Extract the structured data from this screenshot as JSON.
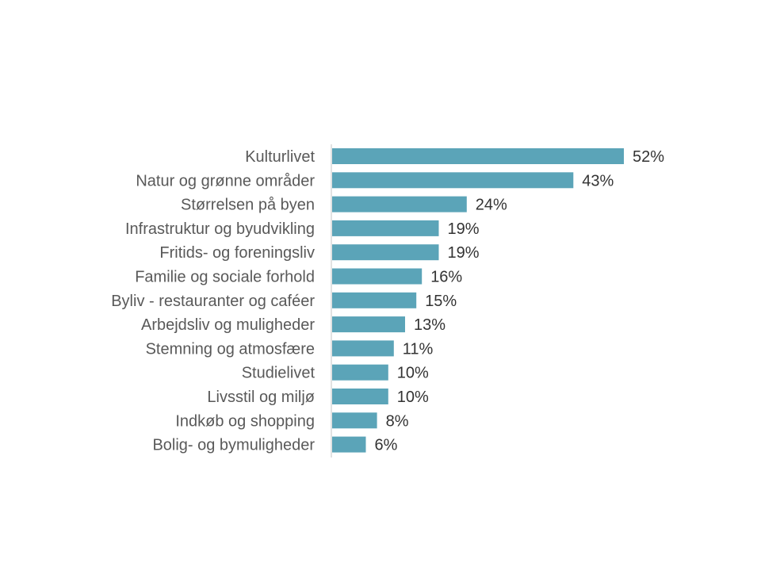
{
  "chart_data": {
    "type": "bar",
    "orientation": "horizontal",
    "categories": [
      "Kulturlivet",
      "Natur og grønne områder",
      "Størrelsen på byen",
      "Infrastruktur og byudvikling",
      "Fritids- og foreningsliv",
      "Familie og sociale forhold",
      "Byliv - restauranter og caféer",
      "Arbejdsliv og muligheder",
      "Stemning og atmosfære",
      "Studielivet",
      "Livsstil og miljø",
      "Indkøb og shopping",
      "Bolig- og bymuligheder"
    ],
    "values": [
      52,
      43,
      24,
      19,
      19,
      16,
      15,
      13,
      11,
      10,
      10,
      8,
      6
    ],
    "value_labels": [
      "52%",
      "43%",
      "24%",
      "19%",
      "19%",
      "16%",
      "15%",
      "13%",
      "11%",
      "10%",
      "10%",
      "8%",
      "6%"
    ],
    "unit": "%",
    "xlim": [
      0,
      52
    ],
    "grid": false,
    "legend": "none",
    "colors": {
      "bar": "#5ba4b8",
      "axis": "#d9d9d9",
      "category_text": "#595959",
      "value_text": "#333333"
    }
  }
}
